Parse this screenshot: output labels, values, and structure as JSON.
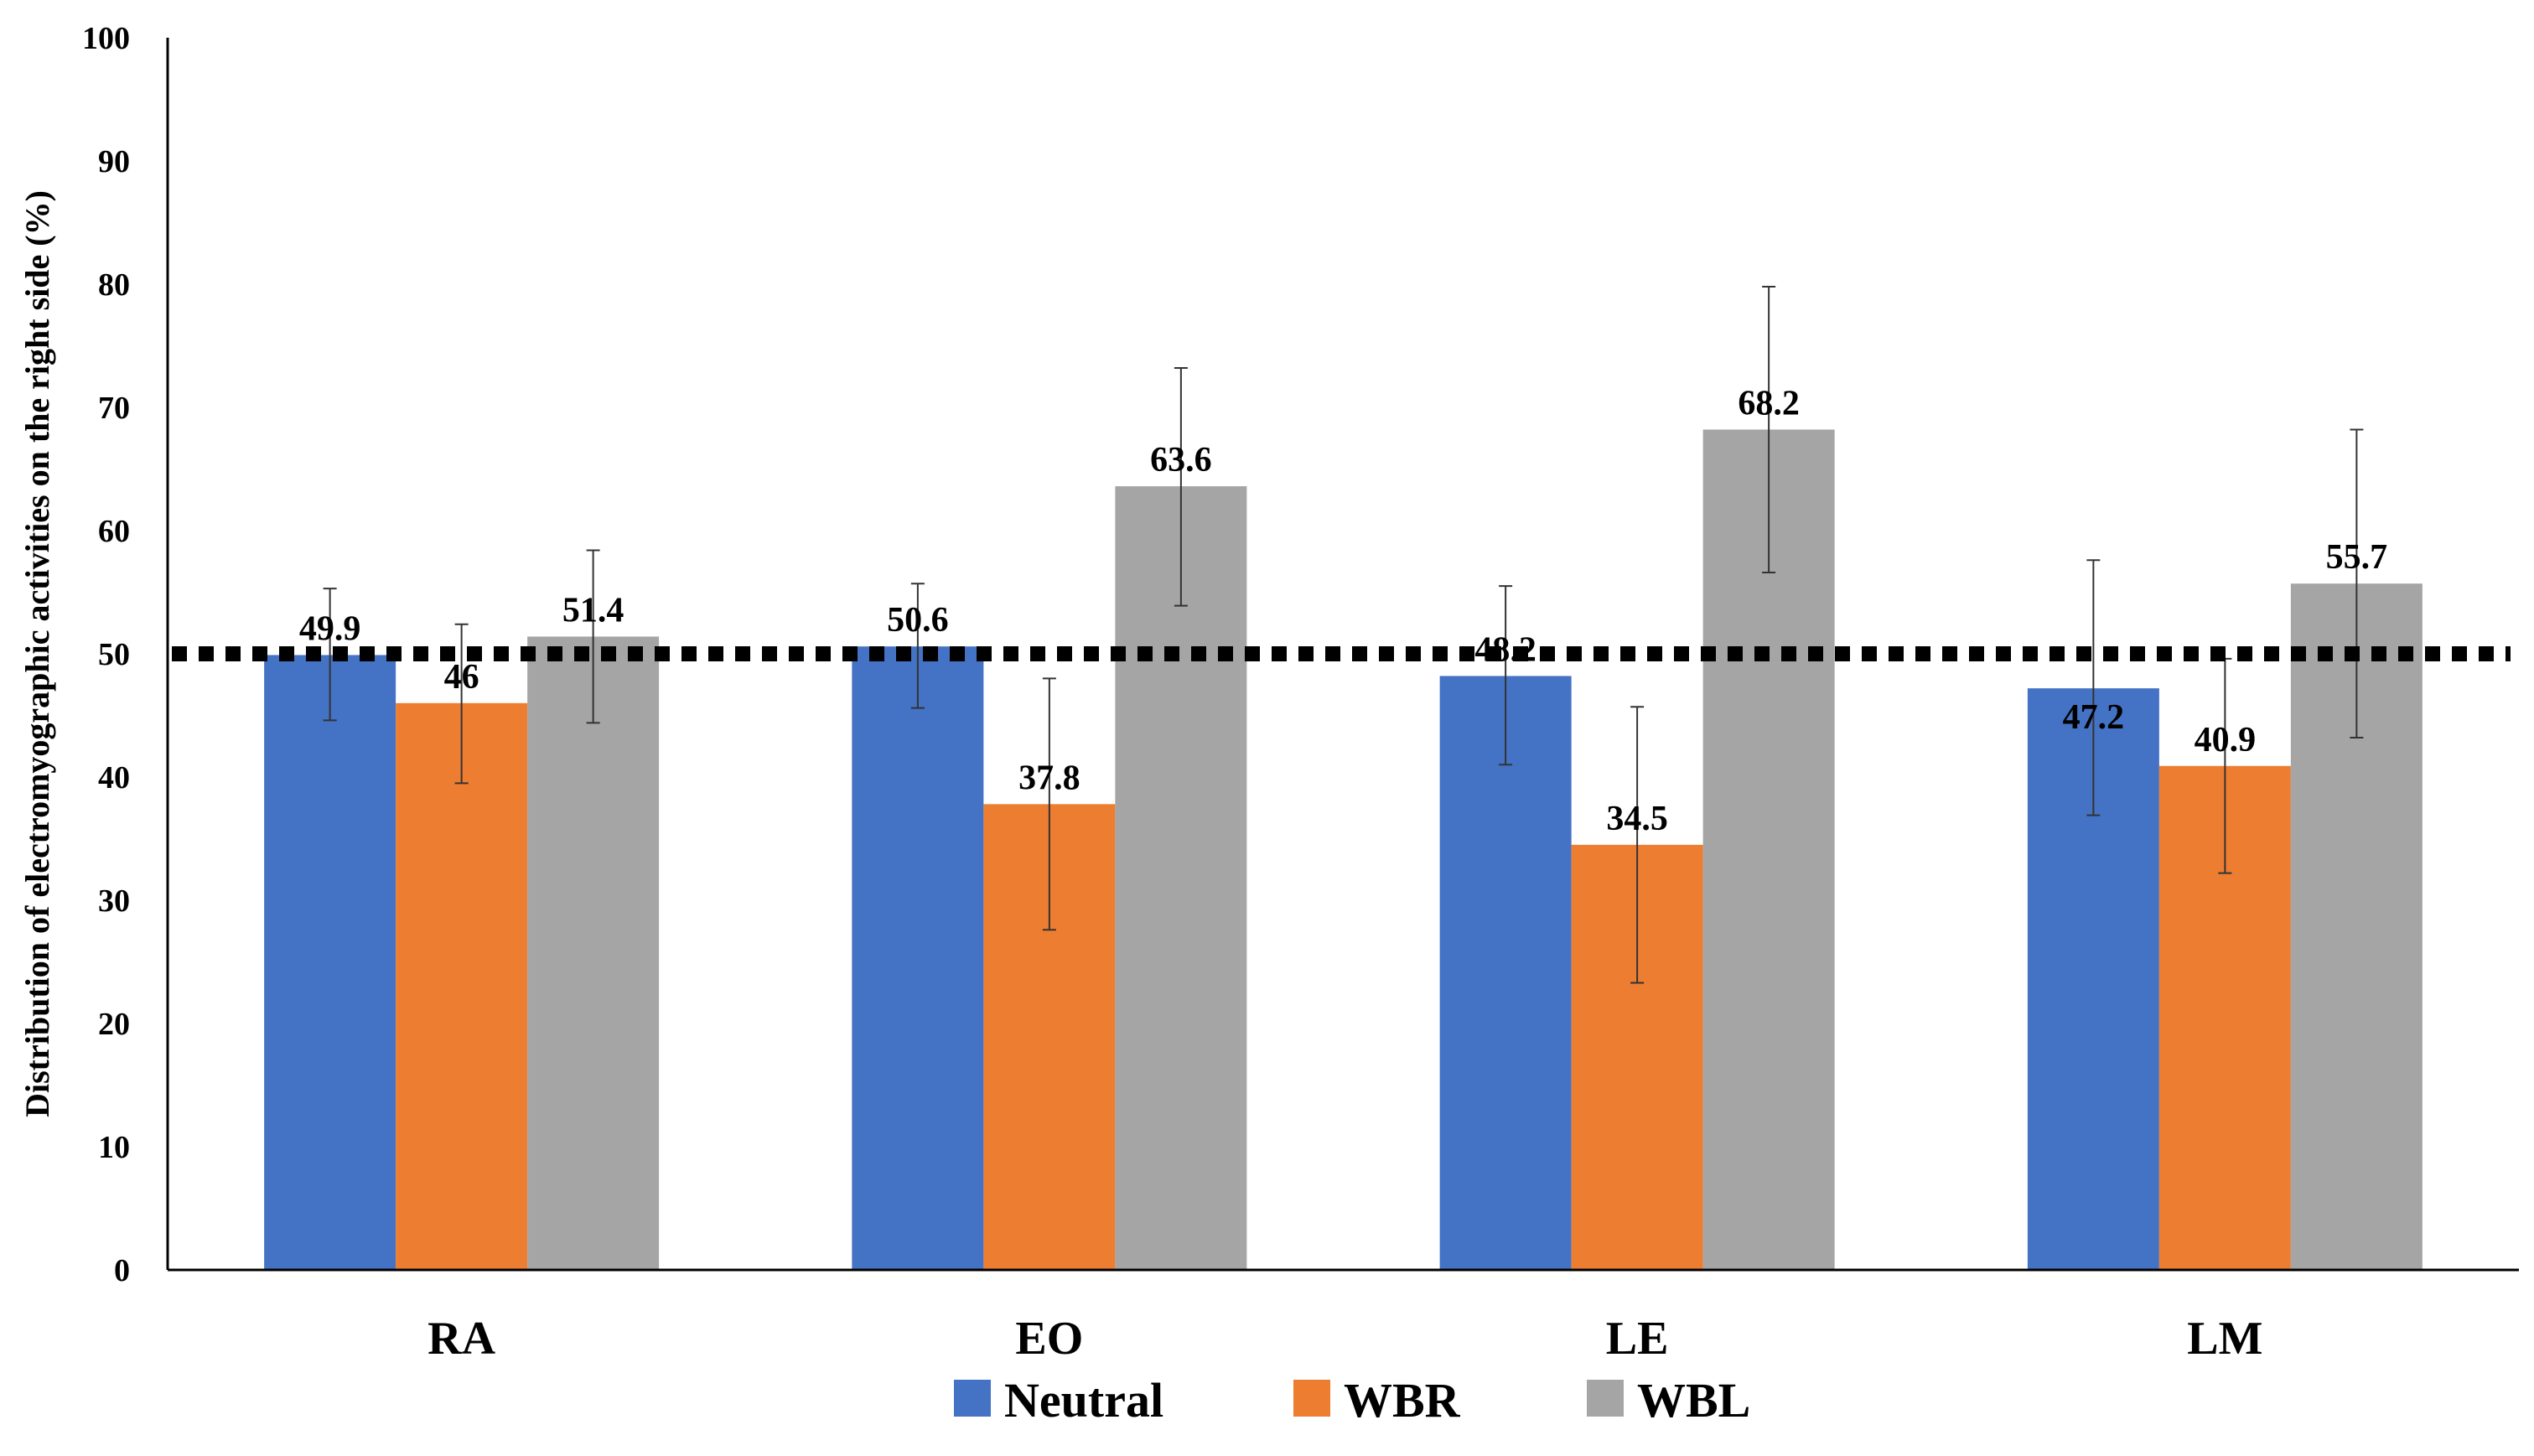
{
  "chart_data": {
    "type": "bar",
    "title": "",
    "xlabel": "",
    "ylabel": "Distribution of electromyographic activities on the right side (%)",
    "ylim": [
      0,
      100
    ],
    "yticks": [
      0,
      10,
      20,
      30,
      40,
      50,
      60,
      70,
      80,
      90,
      100
    ],
    "grid": false,
    "legend_position": "bottom",
    "reference_line": {
      "y": 50,
      "style": "dotted",
      "color": "#000000"
    },
    "categories": [
      "RA",
      "EO",
      "LE",
      "LM"
    ],
    "series": [
      {
        "name": "Neutral",
        "color": "#4472C4",
        "values": [
          49.9,
          50.6,
          48.2,
          47.2
        ],
        "labels": [
          "49.9",
          "50.6",
          "48.2",
          "47.2"
        ],
        "error_low": [
          44.6,
          45.6,
          41.0,
          36.9
        ],
        "error_high": [
          55.3,
          55.7,
          55.5,
          57.6
        ]
      },
      {
        "name": "WBR",
        "color": "#ED7D31",
        "values": [
          46,
          37.8,
          34.5,
          40.9
        ],
        "labels": [
          "46",
          "37.8",
          "34.5",
          "40.9"
        ],
        "error_low": [
          39.5,
          27.6,
          23.3,
          32.2
        ],
        "error_high": [
          52.4,
          48.0,
          45.7,
          49.6
        ]
      },
      {
        "name": "WBL",
        "color": "#A5A5A5",
        "values": [
          51.4,
          63.6,
          68.2,
          55.7
        ],
        "labels": [
          "51.4",
          "63.6",
          "68.2",
          "55.7"
        ],
        "error_low": [
          44.4,
          53.9,
          56.6,
          43.2
        ],
        "error_high": [
          58.4,
          73.2,
          79.8,
          68.2
        ]
      }
    ]
  }
}
